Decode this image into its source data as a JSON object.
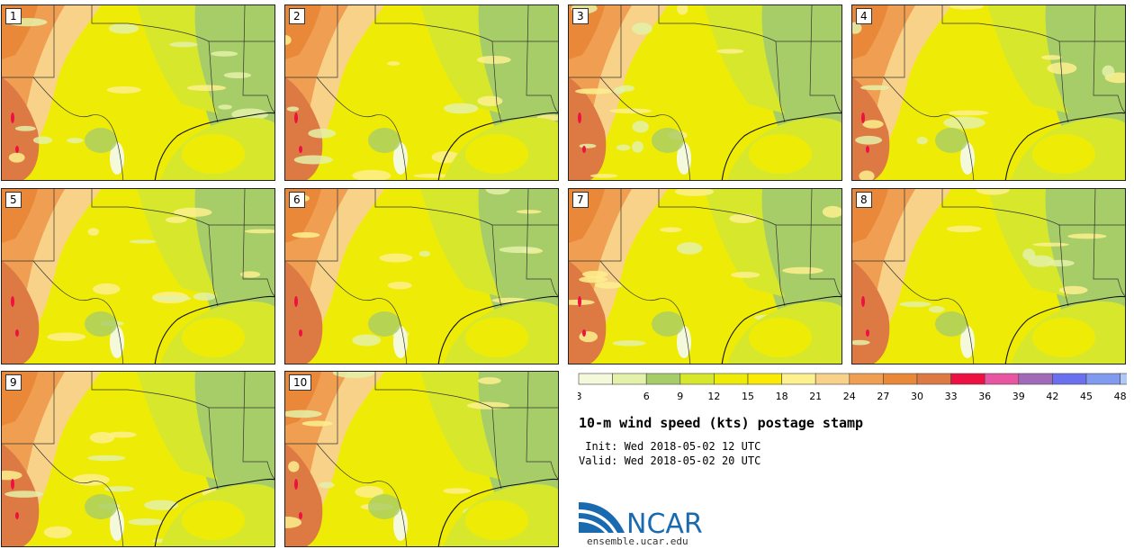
{
  "title": "10-m wind speed (kts) postage stamp",
  "init_line": " Init: Wed 2018-05-02 12 UTC",
  "valid_line": "Valid: Wed 2018-05-02 20 UTC",
  "logo_text": "NCAR",
  "site": "ensemble.ucar.edu",
  "members": [
    "1",
    "2",
    "3",
    "4",
    "5",
    "6",
    "7",
    "8",
    "9",
    "10"
  ],
  "colorbar": {
    "ticks": [
      "3",
      "6",
      "9",
      "12",
      "15",
      "18",
      "21",
      "24",
      "27",
      "30",
      "33",
      "36",
      "39",
      "42",
      "45",
      "48"
    ],
    "colors": [
      "#f5f9dc",
      "#e4f1a8",
      "#a7cd68",
      "#d7e82c",
      "#eeec06",
      "#fbea04",
      "#fdf08e",
      "#f9d28a",
      "#ef9e52",
      "#e88838",
      "#dd7a44",
      "#ee1040",
      "#e855a0",
      "#a06ab8",
      "#6a70ee",
      "#7f9aee",
      "#b0c8f6"
    ],
    "colors_note": ""
  }
}
